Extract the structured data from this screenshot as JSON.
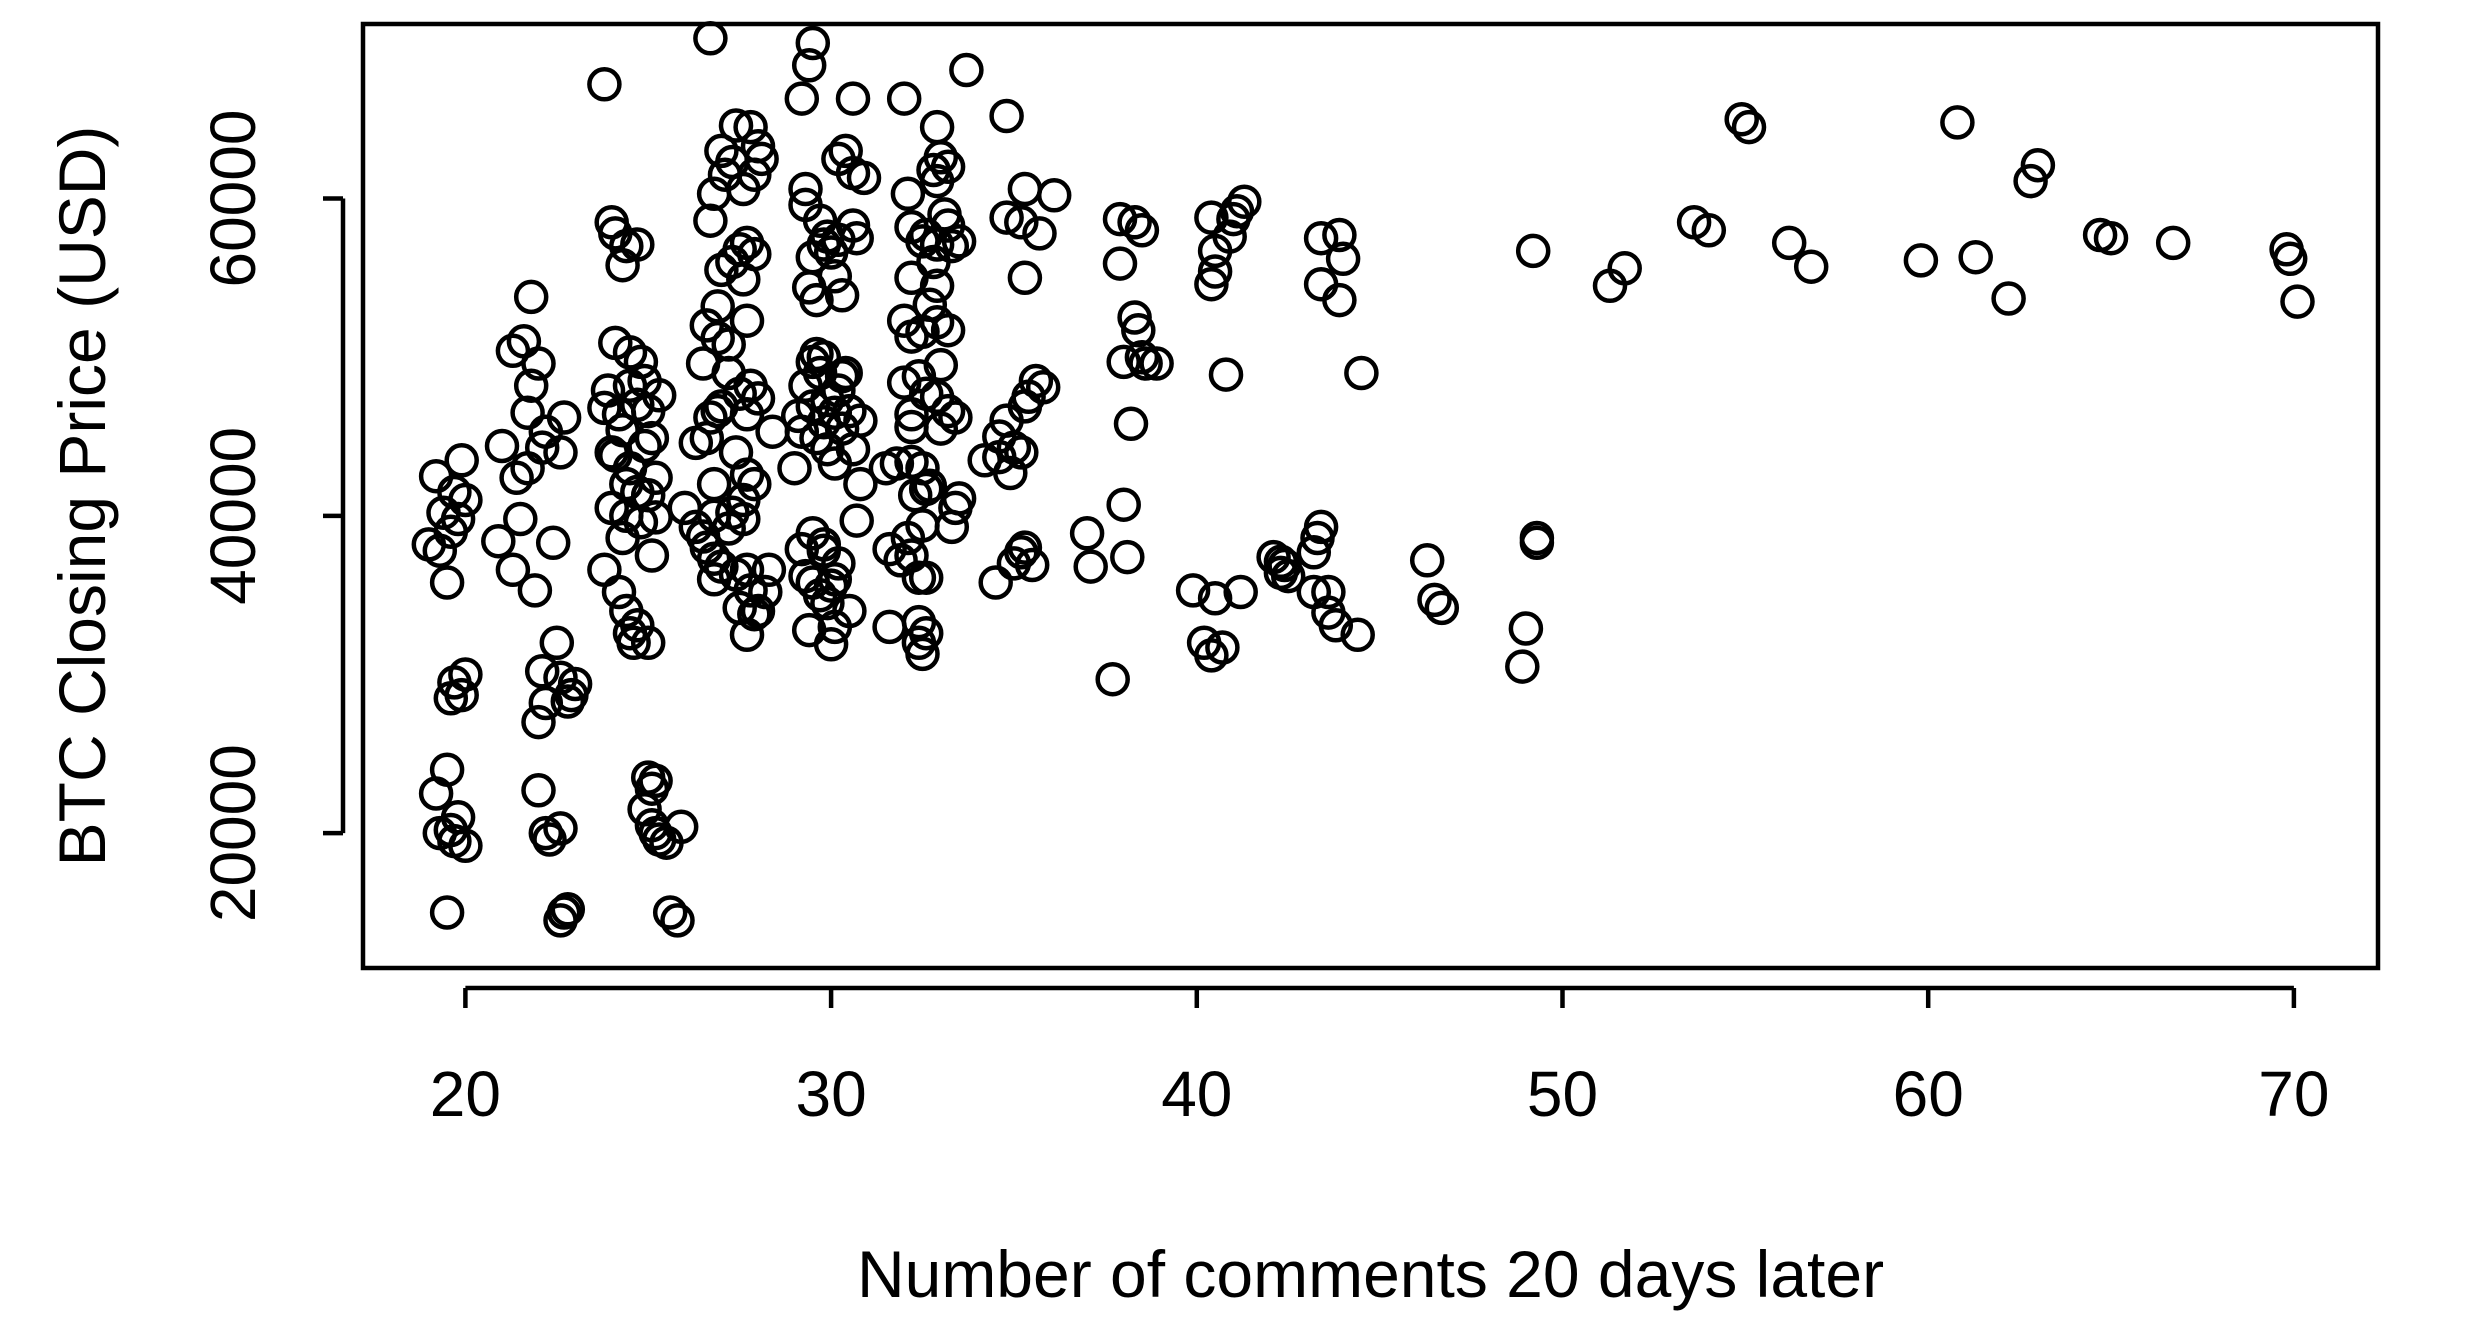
{
  "chart_data": {
    "type": "scatter",
    "title": "",
    "xlabel": "Number of comments 20 days later",
    "ylabel": "BTC Closing Price (USD)",
    "xlim": [
      17.2,
      72.3
    ],
    "ylim": [
      11500,
      71000
    ],
    "x_ticks": [
      20,
      30,
      40,
      50,
      60,
      70
    ],
    "x_tick_labels": [
      "20",
      "30",
      "40",
      "50",
      "60",
      "70"
    ],
    "y_ticks": [
      20000,
      40000,
      60000
    ],
    "y_tick_labels": [
      "20000",
      "40000",
      "60000"
    ],
    "grid": false,
    "legend": "none",
    "marker": "open-circle",
    "color": "#000000",
    "points": [
      [
        19.2,
        42500
      ],
      [
        19.7,
        41500
      ],
      [
        19.9,
        43500
      ],
      [
        19.4,
        40200
      ],
      [
        19.8,
        39800
      ],
      [
        19.0,
        38200
      ],
      [
        19.3,
        37800
      ],
      [
        19.6,
        39000
      ],
      [
        19.5,
        35800
      ],
      [
        20.0,
        41000
      ],
      [
        19.6,
        28500
      ],
      [
        19.9,
        28700
      ],
      [
        20.0,
        30000
      ],
      [
        19.7,
        29500
      ],
      [
        19.2,
        22500
      ],
      [
        19.5,
        24000
      ],
      [
        19.8,
        21000
      ],
      [
        19.3,
        20000
      ],
      [
        19.7,
        19500
      ],
      [
        20.0,
        19200
      ],
      [
        19.6,
        20200
      ],
      [
        19.5,
        15000
      ],
      [
        20.9,
        38400
      ],
      [
        21.3,
        36600
      ],
      [
        21.5,
        39800
      ],
      [
        21.0,
        44400
      ],
      [
        21.4,
        42400
      ],
      [
        21.7,
        43000
      ],
      [
        21.3,
        50400
      ],
      [
        21.6,
        51000
      ],
      [
        21.8,
        48200
      ],
      [
        22.0,
        49600
      ],
      [
        21.8,
        53800
      ],
      [
        21.7,
        46500
      ],
      [
        22.1,
        44300
      ],
      [
        22.2,
        45300
      ],
      [
        22.4,
        38300
      ],
      [
        21.9,
        35300
      ],
      [
        22.6,
        44000
      ],
      [
        22.7,
        46200
      ],
      [
        22.1,
        30200
      ],
      [
        22.6,
        29800
      ],
      [
        22.9,
        28700
      ],
      [
        23.0,
        29400
      ],
      [
        22.2,
        28200
      ],
      [
        22.0,
        27000
      ],
      [
        22.5,
        32000
      ],
      [
        22.8,
        28300
      ],
      [
        22.0,
        22700
      ],
      [
        22.2,
        20000
      ],
      [
        22.6,
        20300
      ],
      [
        22.3,
        19600
      ],
      [
        22.7,
        15000
      ],
      [
        22.6,
        14500
      ],
      [
        22.8,
        15200
      ],
      [
        23.8,
        67200
      ],
      [
        24.0,
        58500
      ],
      [
        24.1,
        57800
      ],
      [
        24.4,
        57000
      ],
      [
        24.3,
        55800
      ],
      [
        24.7,
        57100
      ],
      [
        23.8,
        46800
      ],
      [
        23.9,
        47900
      ],
      [
        24.2,
        46400
      ],
      [
        24.5,
        48200
      ],
      [
        24.8,
        49700
      ],
      [
        24.9,
        48500
      ],
      [
        25.3,
        47600
      ],
      [
        25.0,
        46600
      ],
      [
        24.7,
        47000
      ],
      [
        24.3,
        45400
      ],
      [
        24.0,
        44000
      ],
      [
        24.5,
        43000
      ],
      [
        24.1,
        43800
      ],
      [
        24.4,
        42000
      ],
      [
        24.7,
        41500
      ],
      [
        25.0,
        41300
      ],
      [
        25.2,
        42400
      ],
      [
        25.1,
        44900
      ],
      [
        24.9,
        44400
      ],
      [
        24.1,
        50900
      ],
      [
        24.5,
        50300
      ],
      [
        24.4,
        40000
      ],
      [
        24.0,
        40500
      ],
      [
        24.8,
        39600
      ],
      [
        25.2,
        39900
      ],
      [
        24.3,
        38600
      ],
      [
        25.1,
        37500
      ],
      [
        23.8,
        36600
      ],
      [
        24.2,
        35200
      ],
      [
        24.4,
        34000
      ],
      [
        24.7,
        33100
      ],
      [
        24.5,
        32600
      ],
      [
        24.6,
        32000
      ],
      [
        25.0,
        32000
      ],
      [
        25.0,
        23500
      ],
      [
        25.1,
        22800
      ],
      [
        25.2,
        23300
      ],
      [
        24.9,
        21500
      ],
      [
        25.1,
        20500
      ],
      [
        25.3,
        19600
      ],
      [
        25.5,
        19400
      ],
      [
        25.2,
        20000
      ],
      [
        25.9,
        20400
      ],
      [
        25.6,
        15000
      ],
      [
        25.8,
        14500
      ],
      [
        26.0,
        40500
      ],
      [
        26.3,
        39300
      ],
      [
        26.6,
        38000
      ],
      [
        26.5,
        38700
      ],
      [
        26.8,
        37300
      ],
      [
        26.3,
        44600
      ],
      [
        26.6,
        44900
      ],
      [
        26.7,
        46200
      ],
      [
        26.9,
        46600
      ],
      [
        26.8,
        42000
      ],
      [
        26.8,
        40000
      ],
      [
        26.5,
        49600
      ],
      [
        26.9,
        51200
      ],
      [
        27.2,
        50800
      ],
      [
        27.0,
        46900
      ],
      [
        26.9,
        53200
      ],
      [
        27.0,
        55500
      ],
      [
        26.7,
        58600
      ],
      [
        26.8,
        60300
      ],
      [
        27.1,
        61500
      ],
      [
        27.3,
        62300
      ],
      [
        27.0,
        63000
      ],
      [
        27.4,
        64600
      ],
      [
        26.7,
        70100
      ],
      [
        26.6,
        52000
      ],
      [
        27.2,
        49000
      ],
      [
        27.4,
        44000
      ],
      [
        27.5,
        47700
      ],
      [
        27.8,
        48200
      ],
      [
        27.7,
        46400
      ],
      [
        28.0,
        47400
      ],
      [
        28.4,
        45300
      ],
      [
        27.7,
        42600
      ],
      [
        27.9,
        42000
      ],
      [
        27.6,
        41000
      ],
      [
        27.3,
        40200
      ],
      [
        27.2,
        39200
      ],
      [
        27.6,
        39800
      ],
      [
        27.0,
        36800
      ],
      [
        27.4,
        36300
      ],
      [
        27.7,
        36600
      ],
      [
        27.8,
        35300
      ],
      [
        27.5,
        34200
      ],
      [
        27.9,
        33800
      ],
      [
        28.2,
        35200
      ],
      [
        28.0,
        34000
      ],
      [
        27.7,
        32500
      ],
      [
        28.3,
        36600
      ],
      [
        26.8,
        36000
      ],
      [
        27.5,
        56800
      ],
      [
        27.7,
        57200
      ],
      [
        27.9,
        56500
      ],
      [
        27.3,
        56000
      ],
      [
        27.6,
        54900
      ],
      [
        27.7,
        52300
      ],
      [
        27.8,
        64500
      ],
      [
        28.0,
        63300
      ],
      [
        28.1,
        62500
      ],
      [
        27.9,
        61500
      ],
      [
        27.6,
        60600
      ],
      [
        29.1,
        46300
      ],
      [
        29.3,
        48200
      ],
      [
        29.5,
        49700
      ],
      [
        29.6,
        50200
      ],
      [
        29.8,
        50000
      ],
      [
        29.9,
        47300
      ],
      [
        30.1,
        46500
      ],
      [
        30.2,
        47900
      ],
      [
        30.3,
        48800
      ],
      [
        29.7,
        49000
      ],
      [
        29.5,
        46900
      ],
      [
        29.8,
        45900
      ],
      [
        29.0,
        43000
      ],
      [
        29.2,
        45300
      ],
      [
        29.6,
        44900
      ],
      [
        29.9,
        44200
      ],
      [
        30.1,
        43300
      ],
      [
        30.3,
        45500
      ],
      [
        30.5,
        46600
      ],
      [
        30.4,
        49000
      ],
      [
        29.3,
        60600
      ],
      [
        29.3,
        59600
      ],
      [
        29.7,
        58600
      ],
      [
        29.8,
        57100
      ],
      [
        29.5,
        56300
      ],
      [
        29.9,
        57600
      ],
      [
        30.0,
        56600
      ],
      [
        30.2,
        57400
      ],
      [
        30.1,
        55100
      ],
      [
        30.3,
        53900
      ],
      [
        29.4,
        54400
      ],
      [
        29.6,
        53600
      ],
      [
        30.6,
        58300
      ],
      [
        30.7,
        57500
      ],
      [
        29.2,
        66300
      ],
      [
        29.4,
        68400
      ],
      [
        29.5,
        69800
      ],
      [
        30.2,
        62500
      ],
      [
        30.4,
        63000
      ],
      [
        30.6,
        61600
      ],
      [
        30.9,
        61300
      ],
      [
        30.6,
        66300
      ],
      [
        29.3,
        36200
      ],
      [
        29.5,
        35800
      ],
      [
        29.7,
        35000
      ],
      [
        30.0,
        35600
      ],
      [
        29.8,
        37800
      ],
      [
        29.2,
        37900
      ],
      [
        29.5,
        38900
      ],
      [
        29.8,
        38200
      ],
      [
        30.2,
        37000
      ],
      [
        30.1,
        36000
      ],
      [
        29.9,
        34500
      ],
      [
        30.5,
        34000
      ],
      [
        30.1,
        33000
      ],
      [
        30.0,
        31900
      ],
      [
        29.4,
        32800
      ],
      [
        30.8,
        42000
      ],
      [
        30.7,
        39700
      ],
      [
        30.6,
        44200
      ],
      [
        30.8,
        46000
      ],
      [
        31.5,
        43000
      ],
      [
        31.8,
        43300
      ],
      [
        32.2,
        43400
      ],
      [
        32.5,
        43000
      ],
      [
        32.7,
        41900
      ],
      [
        32.6,
        41700
      ],
      [
        32.3,
        41300
      ],
      [
        31.6,
        37900
      ],
      [
        31.9,
        37200
      ],
      [
        32.2,
        37500
      ],
      [
        32.4,
        36100
      ],
      [
        32.6,
        36100
      ],
      [
        32.1,
        38600
      ],
      [
        32.5,
        39400
      ],
      [
        31.6,
        33000
      ],
      [
        32.4,
        33300
      ],
      [
        32.6,
        32600
      ],
      [
        32.4,
        32000
      ],
      [
        32.5,
        31300
      ],
      [
        32.2,
        45600
      ],
      [
        32.2,
        46400
      ],
      [
        32.0,
        48400
      ],
      [
        32.4,
        48800
      ],
      [
        32.6,
        47700
      ],
      [
        32.9,
        47500
      ],
      [
        33.2,
        46600
      ],
      [
        33.4,
        46200
      ],
      [
        33.0,
        45500
      ],
      [
        33.0,
        49500
      ],
      [
        33.2,
        51700
      ],
      [
        32.9,
        52200
      ],
      [
        32.5,
        51600
      ],
      [
        32.2,
        51300
      ],
      [
        32.0,
        52300
      ],
      [
        32.2,
        55000
      ],
      [
        32.8,
        56000
      ],
      [
        32.9,
        57100
      ],
      [
        33.3,
        57000
      ],
      [
        33.5,
        57300
      ],
      [
        33.2,
        58300
      ],
      [
        33.1,
        59000
      ],
      [
        32.5,
        57300
      ],
      [
        32.9,
        54500
      ],
      [
        32.7,
        53300
      ],
      [
        32.2,
        58200
      ],
      [
        32.1,
        60300
      ],
      [
        32.8,
        61800
      ],
      [
        33.2,
        62000
      ],
      [
        33.0,
        62600
      ],
      [
        32.9,
        61100
      ],
      [
        32.6,
        57700
      ],
      [
        32.0,
        66300
      ],
      [
        32.9,
        64500
      ],
      [
        33.7,
        68100
      ],
      [
        33.5,
        41100
      ],
      [
        33.4,
        40500
      ],
      [
        33.3,
        39300
      ],
      [
        34.2,
        43500
      ],
      [
        34.6,
        43700
      ],
      [
        35.0,
        44300
      ],
      [
        35.2,
        44000
      ],
      [
        34.6,
        45000
      ],
      [
        34.8,
        46000
      ],
      [
        34.9,
        42700
      ],
      [
        35.3,
        46900
      ],
      [
        35.6,
        48500
      ],
      [
        35.8,
        48100
      ],
      [
        35.4,
        47500
      ],
      [
        35.0,
        37000
      ],
      [
        35.2,
        37700
      ],
      [
        35.3,
        38000
      ],
      [
        35.5,
        36900
      ],
      [
        34.5,
        35800
      ],
      [
        34.8,
        58800
      ],
      [
        35.2,
        58500
      ],
      [
        35.7,
        57800
      ],
      [
        35.3,
        60600
      ],
      [
        36.1,
        60200
      ],
      [
        35.3,
        55000
      ],
      [
        34.8,
        65200
      ],
      [
        37.0,
        38900
      ],
      [
        37.1,
        36800
      ],
      [
        37.7,
        29700
      ],
      [
        38.1,
        37400
      ],
      [
        38.0,
        40700
      ],
      [
        38.2,
        45800
      ],
      [
        38.0,
        49700
      ],
      [
        38.5,
        50000
      ],
      [
        38.4,
        51700
      ],
      [
        38.3,
        52500
      ],
      [
        38.6,
        49600
      ],
      [
        38.9,
        49600
      ],
      [
        37.9,
        58700
      ],
      [
        38.3,
        58500
      ],
      [
        38.5,
        58000
      ],
      [
        37.9,
        55900
      ],
      [
        39.9,
        35300
      ],
      [
        40.5,
        34800
      ],
      [
        41.2,
        35200
      ],
      [
        40.2,
        32000
      ],
      [
        40.4,
        31200
      ],
      [
        40.7,
        31700
      ],
      [
        40.8,
        48900
      ],
      [
        40.4,
        54600
      ],
      [
        40.5,
        55400
      ],
      [
        40.5,
        56700
      ],
      [
        40.4,
        58800
      ],
      [
        40.9,
        57600
      ],
      [
        41.0,
        58700
      ],
      [
        41.1,
        59200
      ],
      [
        41.3,
        59800
      ],
      [
        42.1,
        37400
      ],
      [
        42.3,
        37100
      ],
      [
        42.4,
        36900
      ],
      [
        42.3,
        36400
      ],
      [
        42.5,
        36200
      ],
      [
        43.2,
        37700
      ],
      [
        43.3,
        38600
      ],
      [
        43.4,
        39300
      ],
      [
        43.2,
        35200
      ],
      [
        43.6,
        35200
      ],
      [
        43.6,
        33900
      ],
      [
        43.8,
        33100
      ],
      [
        44.4,
        32500
      ],
      [
        43.4,
        57500
      ],
      [
        43.9,
        57700
      ],
      [
        44.0,
        56200
      ],
      [
        43.4,
        54600
      ],
      [
        43.9,
        53600
      ],
      [
        44.5,
        49000
      ],
      [
        46.3,
        37200
      ],
      [
        46.5,
        34700
      ],
      [
        46.7,
        34200
      ],
      [
        48.9,
        30500
      ],
      [
        49.0,
        32900
      ],
      [
        49.3,
        38300
      ],
      [
        49.3,
        38600
      ],
      [
        49.2,
        56700
      ],
      [
        51.3,
        54500
      ],
      [
        51.7,
        55600
      ],
      [
        53.6,
        58500
      ],
      [
        54.0,
        58000
      ],
      [
        54.9,
        65000
      ],
      [
        55.1,
        64500
      ],
      [
        56.2,
        57200
      ],
      [
        56.8,
        55700
      ],
      [
        59.8,
        56100
      ],
      [
        60.8,
        64800
      ],
      [
        61.3,
        56300
      ],
      [
        62.2,
        53700
      ],
      [
        62.8,
        61100
      ],
      [
        63.0,
        62100
      ],
      [
        64.7,
        57700
      ],
      [
        65.0,
        57500
      ],
      [
        66.7,
        57200
      ],
      [
        69.8,
        56800
      ],
      [
        69.9,
        56200
      ],
      [
        70.1,
        53500
      ]
    ]
  }
}
